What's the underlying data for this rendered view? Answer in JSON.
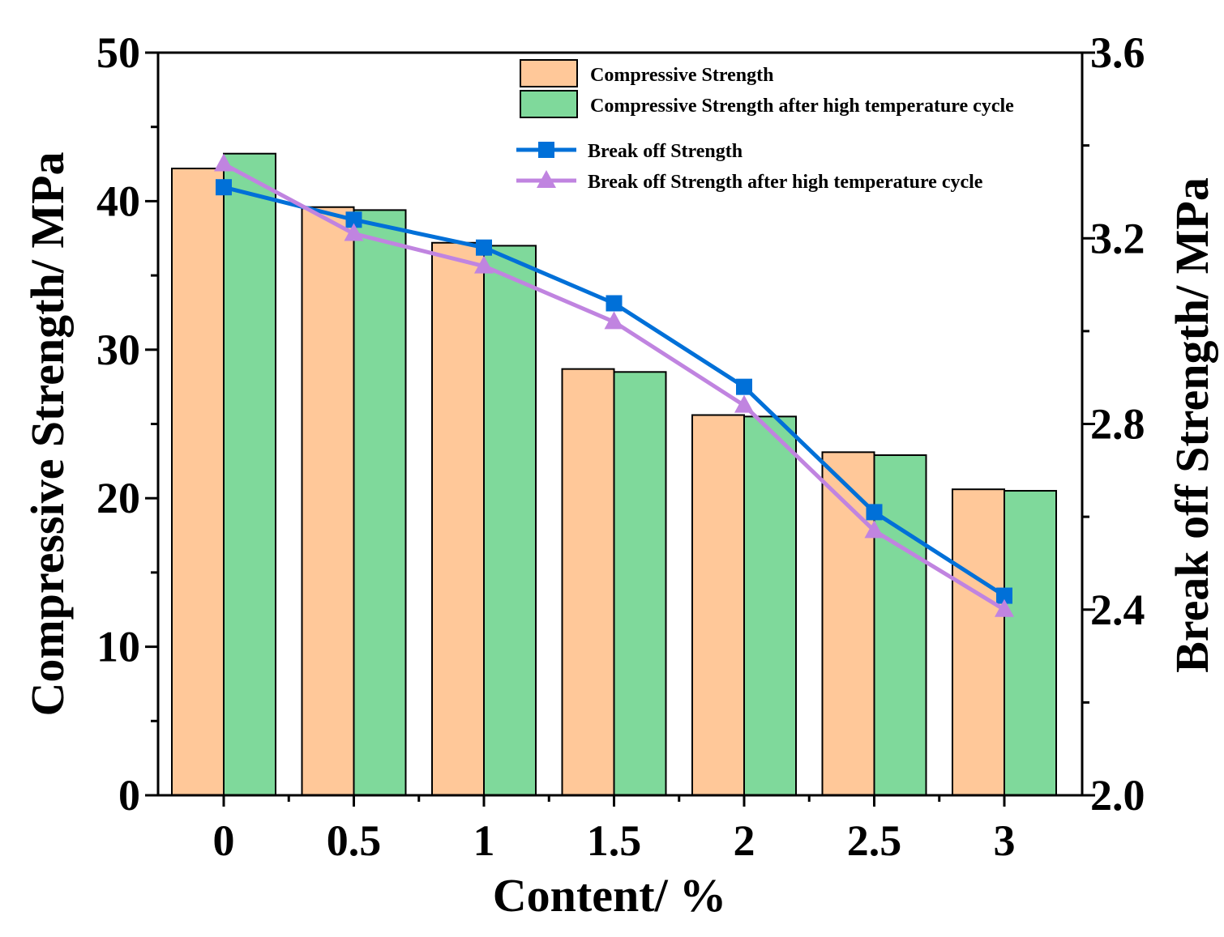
{
  "chart_data": {
    "type": "bar",
    "categories": [
      "0",
      "0.5",
      "1",
      "1.5",
      "2",
      "2.5",
      "3"
    ],
    "xlabel": "Content/ %",
    "ylabel_left": "Compressive Strength/ MPa",
    "ylabel_right": "Break off Strength/ MPa",
    "ylim_left": [
      0,
      50
    ],
    "ylim_right": [
      2.0,
      3.6
    ],
    "yticks_left": [
      "0",
      "10",
      "20",
      "30",
      "40",
      "50"
    ],
    "yticks_right": [
      "2.0",
      "2.4",
      "2.8",
      "3.2",
      "3.6"
    ],
    "grid": false,
    "legend_position": "top-right",
    "bar_series": [
      {
        "name": "Compressive Strength",
        "color": "#FFC899",
        "values": [
          42.2,
          39.6,
          37.2,
          28.7,
          25.6,
          23.1,
          20.6
        ]
      },
      {
        "name": "Compressive Strength after high temperature cycle",
        "color": "#7FD99B",
        "values": [
          43.2,
          39.4,
          37.0,
          28.5,
          25.5,
          22.9,
          20.5
        ]
      }
    ],
    "line_series": [
      {
        "name": "Break off Strength",
        "color": "#0070D8",
        "marker": "square",
        "values": [
          3.31,
          3.24,
          3.18,
          3.06,
          2.88,
          2.61,
          2.43
        ]
      },
      {
        "name": "Break off Strength after high temperature cycle",
        "color": "#C084E0",
        "marker": "triangle",
        "values": [
          3.36,
          3.21,
          3.14,
          3.02,
          2.84,
          2.57,
          2.4
        ]
      }
    ]
  }
}
